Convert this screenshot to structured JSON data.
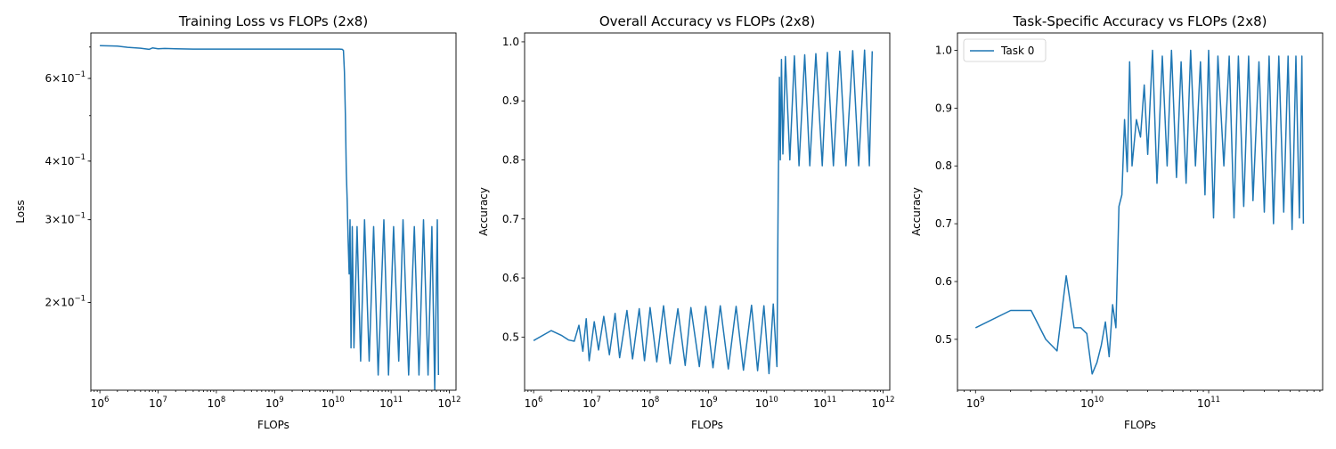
{
  "chart_data": [
    {
      "type": "line",
      "title": "Training Loss vs FLOPs (2x8)",
      "xlabel": "FLOPs",
      "ylabel": "Loss",
      "xscale": "log",
      "yscale": "log",
      "xlim": [
        700000,
        1300000000000.0
      ],
      "ylim": [
        0.13,
        0.75
      ],
      "xticks": [
        {
          "base": "10",
          "exp": "6"
        },
        {
          "base": "10",
          "exp": "7"
        },
        {
          "base": "10",
          "exp": "8"
        },
        {
          "base": "10",
          "exp": "9"
        },
        {
          "base": "10",
          "exp": "10"
        },
        {
          "base": "10",
          "exp": "11"
        },
        {
          "base": "10",
          "exp": "12"
        }
      ],
      "yticks": [
        {
          "mant": "2",
          "base": "10",
          "exp": "−1"
        },
        {
          "mant": "3",
          "base": "10",
          "exp": "−1"
        },
        {
          "mant": "4",
          "base": "10",
          "exp": "−1"
        },
        {
          "mant": "6",
          "base": "10",
          "exp": "−1"
        }
      ],
      "grid": false,
      "series": [
        {
          "x": [
            1000000.0,
            2000000.0,
            3000000.0,
            5000000.0,
            7000000.0,
            8000000.0,
            10000000.0,
            13000000.0,
            20000000.0,
            40000000.0,
            70000000.0,
            100000000.0,
            200000000.0,
            500000000.0,
            1000000000.0,
            2000000000.0,
            5000000000.0,
            10000000000.0,
            13000000000.0,
            14500000000.0,
            15200000000.0,
            15800000000.0,
            16400000000.0,
            17000000000.0,
            17600000000.0,
            18300000000.0,
            19000000000.0,
            19700000000.0,
            20500000000.0,
            21500000000.0,
            23000000000.0,
            26000000000.0,
            30000000000.0,
            35000000000.0,
            42000000000.0,
            50000000000.0,
            60000000000.0,
            75000000000.0,
            90000000000.0,
            110000000000.0,
            135000000000.0,
            160000000000.0,
            200000000000.0,
            250000000000.0,
            300000000000.0,
            360000000000.0,
            430000000000.0,
            500000000000.0,
            560000000000.0,
            620000000000.0,
            650000000000.0
          ],
          "y": [
            0.705,
            0.703,
            0.699,
            0.696,
            0.692,
            0.697,
            0.694,
            0.695,
            0.694,
            0.693,
            0.693,
            0.693,
            0.693,
            0.693,
            0.693,
            0.693,
            0.693,
            0.693,
            0.693,
            0.692,
            0.688,
            0.62,
            0.5,
            0.38,
            0.33,
            0.27,
            0.23,
            0.3,
            0.16,
            0.29,
            0.16,
            0.29,
            0.15,
            0.3,
            0.15,
            0.29,
            0.14,
            0.3,
            0.14,
            0.29,
            0.15,
            0.3,
            0.14,
            0.29,
            0.14,
            0.3,
            0.14,
            0.29,
            0.13,
            0.3,
            0.14
          ]
        }
      ]
    },
    {
      "type": "line",
      "title": "Overall Accuracy vs FLOPs (2x8)",
      "xlabel": "FLOPs",
      "ylabel": "Accuracy",
      "xscale": "log",
      "yscale": "linear",
      "xlim": [
        700000,
        1300000000000.0
      ],
      "ylim": [
        0.41,
        1.015
      ],
      "xticks": [
        {
          "base": "10",
          "exp": "6"
        },
        {
          "base": "10",
          "exp": "7"
        },
        {
          "base": "10",
          "exp": "8"
        },
        {
          "base": "10",
          "exp": "9"
        },
        {
          "base": "10",
          "exp": "10"
        },
        {
          "base": "10",
          "exp": "11"
        },
        {
          "base": "10",
          "exp": "12"
        }
      ],
      "yticks": [
        "0.5",
        "0.6",
        "0.7",
        "0.8",
        "0.9",
        "1.0"
      ],
      "grid": false,
      "series": [
        {
          "x": [
            1000000.0,
            2000000.0,
            3000000.0,
            4000000.0,
            5000000.0,
            6000000.0,
            7000000.0,
            8000000.0,
            9000000.0,
            11000000.0,
            13000000.0,
            16000000.0,
            20000000.0,
            25000000.0,
            30000000.0,
            40000000.0,
            50000000.0,
            65000000.0,
            80000000.0,
            100000000.0,
            130000000.0,
            170000000.0,
            220000000.0,
            300000000.0,
            400000000.0,
            500000000.0,
            700000000.0,
            900000000.0,
            1200000000.0,
            1600000000.0,
            2200000000.0,
            3000000000.0,
            4000000000.0,
            5500000000.0,
            7000000000.0,
            9000000000.0,
            11000000000.0,
            13000000000.0,
            15000000000.0,
            15800000000.0,
            16200000000.0,
            16600000000.0,
            17200000000.0,
            18000000000.0,
            19000000000.0,
            21000000000.0,
            25000000000.0,
            30000000000.0,
            36000000000.0,
            45000000000.0,
            55000000000.0,
            70000000000.0,
            90000000000.0,
            110000000000.0,
            140000000000.0,
            180000000000.0,
            230000000000.0,
            300000000000.0,
            380000000000.0,
            480000000000.0,
            580000000000.0,
            650000000000.0
          ],
          "y": [
            0.494,
            0.511,
            0.503,
            0.495,
            0.493,
            0.52,
            0.476,
            0.531,
            0.46,
            0.526,
            0.478,
            0.535,
            0.47,
            0.54,
            0.465,
            0.545,
            0.463,
            0.548,
            0.46,
            0.55,
            0.458,
            0.553,
            0.455,
            0.548,
            0.452,
            0.55,
            0.45,
            0.552,
            0.448,
            0.553,
            0.446,
            0.552,
            0.444,
            0.554,
            0.443,
            0.553,
            0.438,
            0.556,
            0.45,
            0.74,
            0.84,
            0.94,
            0.8,
            0.97,
            0.81,
            0.975,
            0.8,
            0.976,
            0.79,
            0.978,
            0.79,
            0.98,
            0.79,
            0.982,
            0.79,
            0.984,
            0.79,
            0.985,
            0.79,
            0.986,
            0.79,
            0.984
          ]
        }
      ]
    },
    {
      "type": "line",
      "title": "Task-Specific Accuracy vs FLOPs (2x8)",
      "xlabel": "FLOPs",
      "ylabel": "Accuracy",
      "xscale": "log",
      "yscale": "linear",
      "xlim": [
        700000000,
        950000000000.0
      ],
      "ylim": [
        0.412,
        1.03
      ],
      "xticks": [
        {
          "base": "10",
          "exp": "9"
        },
        {
          "base": "10",
          "exp": "10"
        },
        {
          "base": "10",
          "exp": "11"
        }
      ],
      "yticks": [
        "0.5",
        "0.6",
        "0.7",
        "0.8",
        "0.9",
        "1.0"
      ],
      "legend": {
        "position": "top-left",
        "entries": [
          "Task 0"
        ]
      },
      "grid": false,
      "series": [
        {
          "name": "Task 0",
          "x": [
            1000000000.0,
            2000000000.0,
            3000000000.0,
            4000000000.0,
            5000000000.0,
            6000000000.0,
            7000000000.0,
            8000000000.0,
            9000000000.0,
            10000000000.0,
            11000000000.0,
            12000000000.0,
            13000000000.0,
            14000000000.0,
            15000000000.0,
            16000000000.0,
            17000000000.0,
            18000000000.0,
            19000000000.0,
            20000000000.0,
            21000000000.0,
            22000000000.0,
            24000000000.0,
            26000000000.0,
            28000000000.0,
            30000000000.0,
            33000000000.0,
            36000000000.0,
            40000000000.0,
            44000000000.0,
            48000000000.0,
            53000000000.0,
            58000000000.0,
            64000000000.0,
            70000000000.0,
            77000000000.0,
            85000000000.0,
            93000000000.0,
            100000000000.0,
            110000000000.0,
            120000000000.0,
            135000000000.0,
            150000000000.0,
            165000000000.0,
            180000000000.0,
            200000000000.0,
            220000000000.0,
            240000000000.0,
            270000000000.0,
            300000000000.0,
            330000000000.0,
            360000000000.0,
            400000000000.0,
            440000000000.0,
            480000000000.0,
            520000000000.0,
            560000000000.0,
            600000000000.0,
            630000000000.0,
            650000000000.0
          ],
          "y": [
            0.52,
            0.55,
            0.55,
            0.5,
            0.48,
            0.61,
            0.52,
            0.52,
            0.51,
            0.44,
            0.46,
            0.49,
            0.53,
            0.47,
            0.56,
            0.52,
            0.73,
            0.75,
            0.88,
            0.79,
            0.98,
            0.8,
            0.88,
            0.85,
            0.94,
            0.82,
            1.0,
            0.77,
            0.99,
            0.8,
            1.0,
            0.78,
            0.98,
            0.77,
            1.0,
            0.8,
            0.98,
            0.75,
            1.0,
            0.71,
            0.99,
            0.8,
            0.99,
            0.71,
            0.99,
            0.73,
            0.99,
            0.74,
            0.98,
            0.72,
            0.99,
            0.7,
            0.99,
            0.72,
            0.99,
            0.69,
            0.99,
            0.71,
            0.99,
            0.7
          ]
        }
      ]
    }
  ]
}
